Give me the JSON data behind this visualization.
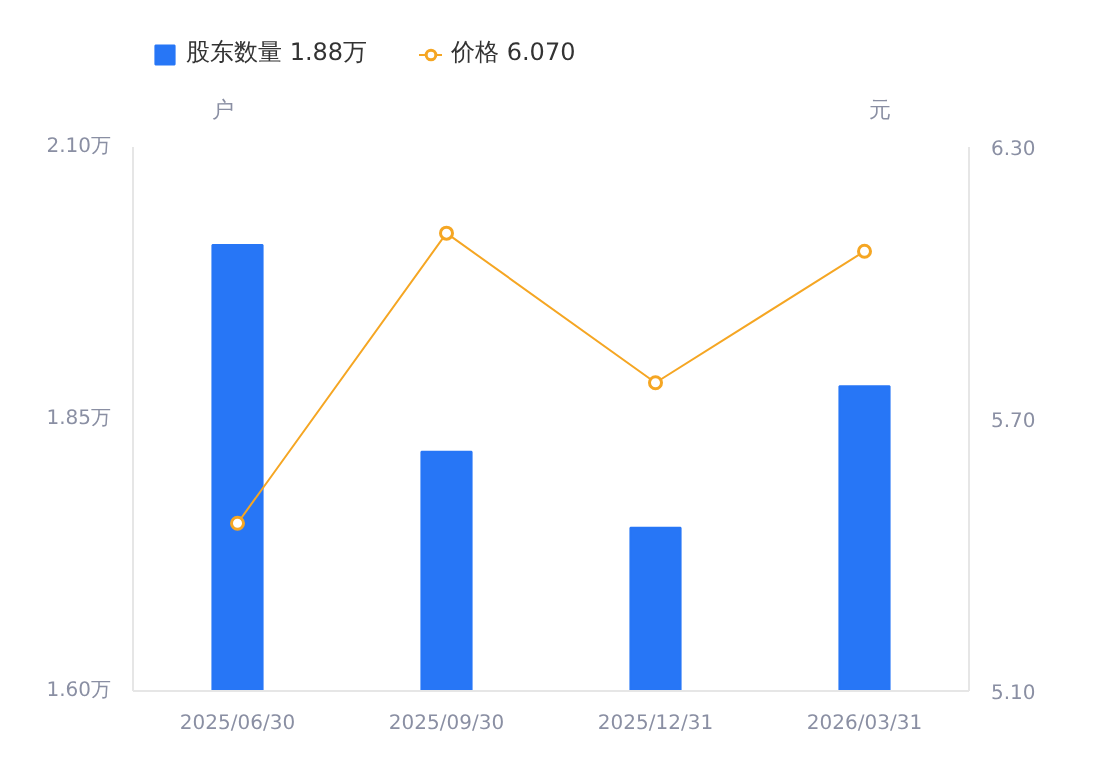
{
  "chart_data": {
    "type": "bar",
    "ylabel": "户",
    "y2label": "元",
    "categories": [
      "2025/06/30",
      "2025/09/30",
      "2025/12/31",
      "2026/03/31"
    ],
    "series": [
      {
        "name": "股东数量 1.88万",
        "color": "#2776f6",
        "values": [
          2.01,
          1.82,
          1.75,
          1.88
        ]
      },
      {
        "name": "价格 6.070",
        "type": "line",
        "axis": "y2",
        "color": "#f5a623",
        "values": [
          5.47,
          6.11,
          5.78,
          6.07
        ]
      }
    ],
    "ylim": [
      1.6,
      2.1
    ],
    "yticks": [
      {
        "value": 1.6,
        "label": "1.60万"
      },
      {
        "value": 1.85,
        "label": "1.85万"
      },
      {
        "value": 2.1,
        "label": "2.10万"
      }
    ],
    "y2lim": [
      5.1,
      6.3
    ],
    "y2ticks": [
      {
        "value": 5.1,
        "label": "5.10"
      },
      {
        "value": 5.7,
        "label": "5.70"
      },
      {
        "value": 6.3,
        "label": "6.30"
      }
    ],
    "legend": "top left",
    "grid": false,
    "marker": "circle"
  }
}
